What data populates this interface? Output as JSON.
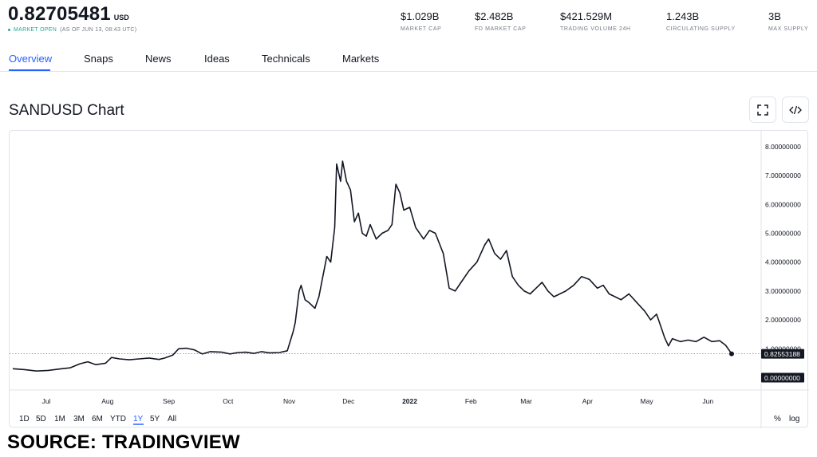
{
  "header": {
    "price": "0.82705481",
    "currency": "USD",
    "market_status": "MARKET OPEN",
    "as_of": "(AS OF JUN 13, 08:43 UTC)"
  },
  "stats": [
    {
      "value": "$1.029B",
      "label": "MARKET CAP"
    },
    {
      "value": "$2.482B",
      "label": "FD MARKET CAP"
    },
    {
      "value": "$421.529M",
      "label": "TRADING VOLUME 24H"
    },
    {
      "value": "1.243B",
      "label": "CIRCULATING SUPPLY"
    },
    {
      "value": "3B",
      "label": "MAX SUPPLY"
    }
  ],
  "tabs": [
    "Overview",
    "Snaps",
    "News",
    "Ideas",
    "Technicals",
    "Markets"
  ],
  "active_tab": "Overview",
  "chart_title": "SANDUSD Chart",
  "icons": {
    "fullscreen": "fullscreen-icon",
    "embed": "code-embed-icon"
  },
  "ranges": [
    "1D",
    "5D",
    "1M",
    "3M",
    "6M",
    "YTD",
    "1Y",
    "5Y",
    "All"
  ],
  "active_range": "1Y",
  "scale_toggles": {
    "percent": "%",
    "log": "log"
  },
  "source_text": "SOURCE: TRADINGVIEW",
  "colors": {
    "accent": "#2962ff",
    "line": "#131722",
    "positive": "#22ab94"
  },
  "chart_data": {
    "type": "line",
    "title": "SANDUSD Chart",
    "xlabel": "",
    "ylabel": "",
    "x_start": "2021-06-14",
    "x_end": "2022-06-13",
    "ylim": [
      0,
      8
    ],
    "y_ticks": [
      "0.00000000",
      "1.00000000",
      "2.00000000",
      "3.00000000",
      "4.00000000",
      "5.00000000",
      "6.00000000",
      "7.00000000",
      "8.00000000"
    ],
    "x_ticks": [
      {
        "date": "2021-07-01",
        "label": "Jul"
      },
      {
        "date": "2021-08-01",
        "label": "Aug"
      },
      {
        "date": "2021-09-01",
        "label": "Sep"
      },
      {
        "date": "2021-10-01",
        "label": "Oct"
      },
      {
        "date": "2021-11-01",
        "label": "Nov"
      },
      {
        "date": "2021-12-01",
        "label": "Dec"
      },
      {
        "date": "2022-01-01",
        "label": "2022",
        "bold": true
      },
      {
        "date": "2022-02-01",
        "label": "Feb"
      },
      {
        "date": "2022-03-01",
        "label": "Mar"
      },
      {
        "date": "2022-04-01",
        "label": "Apr"
      },
      {
        "date": "2022-05-01",
        "label": "May"
      },
      {
        "date": "2022-06-01",
        "label": "Jun"
      }
    ],
    "last_value": 0.82553188,
    "last_value_label": "0.82553188",
    "grid": false,
    "series": [
      {
        "values": [
          [
            "2021-06-14",
            0.31
          ],
          [
            "2021-06-20",
            0.28
          ],
          [
            "2021-06-26",
            0.23
          ],
          [
            "2021-07-02",
            0.25
          ],
          [
            "2021-07-08",
            0.3
          ],
          [
            "2021-07-13",
            0.34
          ],
          [
            "2021-07-18",
            0.48
          ],
          [
            "2021-07-22",
            0.55
          ],
          [
            "2021-07-26",
            0.45
          ],
          [
            "2021-07-31",
            0.5
          ],
          [
            "2021-08-03",
            0.7
          ],
          [
            "2021-08-07",
            0.65
          ],
          [
            "2021-08-12",
            0.62
          ],
          [
            "2021-08-17",
            0.65
          ],
          [
            "2021-08-22",
            0.68
          ],
          [
            "2021-08-27",
            0.63
          ],
          [
            "2021-08-30",
            0.68
          ],
          [
            "2021-09-03",
            0.78
          ],
          [
            "2021-09-06",
            1.0
          ],
          [
            "2021-09-10",
            1.02
          ],
          [
            "2021-09-14",
            0.96
          ],
          [
            "2021-09-18",
            0.82
          ],
          [
            "2021-09-22",
            0.9
          ],
          [
            "2021-09-28",
            0.88
          ],
          [
            "2021-10-02",
            0.82
          ],
          [
            "2021-10-06",
            0.87
          ],
          [
            "2021-10-10",
            0.88
          ],
          [
            "2021-10-14",
            0.84
          ],
          [
            "2021-10-18",
            0.9
          ],
          [
            "2021-10-22",
            0.86
          ],
          [
            "2021-10-27",
            0.87
          ],
          [
            "2021-10-31",
            0.93
          ],
          [
            "2021-11-03",
            1.6
          ],
          [
            "2021-11-04",
            1.9
          ],
          [
            "2021-11-06",
            3.0
          ],
          [
            "2021-11-07",
            3.2
          ],
          [
            "2021-11-09",
            2.7
          ],
          [
            "2021-11-11",
            2.6
          ],
          [
            "2021-11-14",
            2.4
          ],
          [
            "2021-11-16",
            2.8
          ],
          [
            "2021-11-18",
            3.5
          ],
          [
            "2021-11-20",
            4.2
          ],
          [
            "2021-11-22",
            4.0
          ],
          [
            "2021-11-24",
            5.2
          ],
          [
            "2021-11-25",
            7.4
          ],
          [
            "2021-11-27",
            6.8
          ],
          [
            "2021-11-28",
            7.5
          ],
          [
            "2021-11-30",
            6.8
          ],
          [
            "2021-12-02",
            6.5
          ],
          [
            "2021-12-04",
            5.4
          ],
          [
            "2021-12-06",
            5.7
          ],
          [
            "2021-12-08",
            5.0
          ],
          [
            "2021-12-10",
            4.9
          ],
          [
            "2021-12-12",
            5.3
          ],
          [
            "2021-12-15",
            4.8
          ],
          [
            "2021-12-18",
            5.0
          ],
          [
            "2021-12-21",
            5.1
          ],
          [
            "2021-12-23",
            5.3
          ],
          [
            "2021-12-25",
            6.7
          ],
          [
            "2021-12-27",
            6.4
          ],
          [
            "2021-12-29",
            5.8
          ],
          [
            "2022-01-01",
            5.9
          ],
          [
            "2022-01-04",
            5.2
          ],
          [
            "2022-01-08",
            4.8
          ],
          [
            "2022-01-11",
            5.1
          ],
          [
            "2022-01-14",
            5.0
          ],
          [
            "2022-01-18",
            4.3
          ],
          [
            "2022-01-21",
            3.1
          ],
          [
            "2022-01-24",
            3.0
          ],
          [
            "2022-01-27",
            3.3
          ],
          [
            "2022-01-31",
            3.7
          ],
          [
            "2022-02-04",
            4.0
          ],
          [
            "2022-02-08",
            4.6
          ],
          [
            "2022-02-10",
            4.8
          ],
          [
            "2022-02-13",
            4.3
          ],
          [
            "2022-02-16",
            4.1
          ],
          [
            "2022-02-19",
            4.4
          ],
          [
            "2022-02-22",
            3.5
          ],
          [
            "2022-02-25",
            3.2
          ],
          [
            "2022-02-28",
            3.0
          ],
          [
            "2022-03-03",
            2.9
          ],
          [
            "2022-03-06",
            3.1
          ],
          [
            "2022-03-09",
            3.3
          ],
          [
            "2022-03-12",
            3.0
          ],
          [
            "2022-03-15",
            2.8
          ],
          [
            "2022-03-18",
            2.9
          ],
          [
            "2022-03-21",
            3.0
          ],
          [
            "2022-03-25",
            3.2
          ],
          [
            "2022-03-29",
            3.5
          ],
          [
            "2022-04-02",
            3.4
          ],
          [
            "2022-04-06",
            3.1
          ],
          [
            "2022-04-09",
            3.2
          ],
          [
            "2022-04-12",
            2.9
          ],
          [
            "2022-04-15",
            2.8
          ],
          [
            "2022-04-18",
            2.7
          ],
          [
            "2022-04-22",
            2.9
          ],
          [
            "2022-04-26",
            2.6
          ],
          [
            "2022-04-30",
            2.3
          ],
          [
            "2022-05-03",
            2.0
          ],
          [
            "2022-05-06",
            2.2
          ],
          [
            "2022-05-08",
            1.8
          ],
          [
            "2022-05-10",
            1.4
          ],
          [
            "2022-05-12",
            1.1
          ],
          [
            "2022-05-14",
            1.35
          ],
          [
            "2022-05-18",
            1.25
          ],
          [
            "2022-05-22",
            1.3
          ],
          [
            "2022-05-26",
            1.25
          ],
          [
            "2022-05-30",
            1.4
          ],
          [
            "2022-06-03",
            1.25
          ],
          [
            "2022-06-07",
            1.28
          ],
          [
            "2022-06-10",
            1.12
          ],
          [
            "2022-06-13",
            0.82553188
          ]
        ]
      }
    ]
  }
}
